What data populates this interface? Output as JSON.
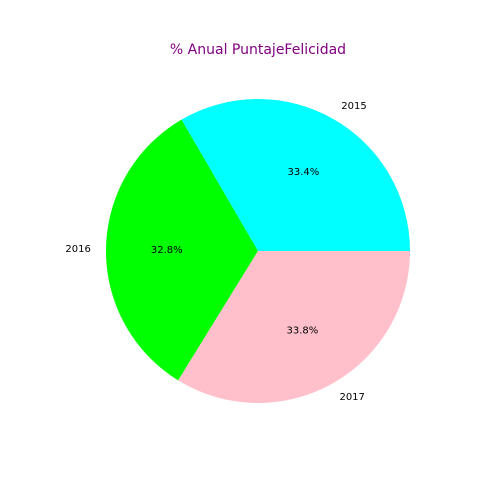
{
  "chart_data": {
    "type": "pie",
    "title": "% Anual PuntajeFelicidad",
    "title_color": "#800080",
    "categories": [
      "2015",
      "2016",
      "2017"
    ],
    "values": [
      33.4,
      32.8,
      33.8
    ],
    "value_labels": [
      "33.4%",
      "32.8%",
      "33.8%"
    ],
    "colors": [
      "#00ffff",
      "#00ff00",
      "#ffc0cb"
    ],
    "start_angle_deg": 0,
    "direction": "counterclockwise"
  }
}
